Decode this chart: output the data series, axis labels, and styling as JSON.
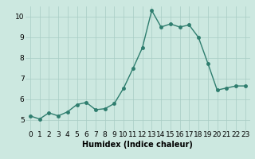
{
  "x": [
    0,
    1,
    2,
    3,
    4,
    5,
    6,
    7,
    8,
    9,
    10,
    11,
    12,
    13,
    14,
    15,
    16,
    17,
    18,
    19,
    20,
    21,
    22,
    23
  ],
  "y": [
    5.2,
    5.05,
    5.35,
    5.2,
    5.4,
    5.75,
    5.85,
    5.5,
    5.55,
    5.8,
    6.55,
    7.5,
    8.5,
    10.3,
    9.5,
    9.65,
    9.5,
    9.6,
    9.0,
    7.75,
    6.45,
    6.55,
    6.65,
    6.65
  ],
  "xlabel": "Humidex (Indice chaleur)",
  "ylim": [
    4.5,
    10.5
  ],
  "xlim": [
    -0.5,
    23.5
  ],
  "line_color": "#2e7d6e",
  "marker_color": "#2e7d6e",
  "bg_color": "#cce8e0",
  "grid_color": "#a8ccc4",
  "yticks": [
    5,
    6,
    7,
    8,
    9,
    10
  ],
  "xtick_labels": [
    "0",
    "1",
    "2",
    "3",
    "4",
    "5",
    "6",
    "7",
    "8",
    "9",
    "10",
    "11",
    "12",
    "13",
    "14",
    "15",
    "16",
    "17",
    "18",
    "19",
    "20",
    "21",
    "22",
    "23"
  ],
  "xlabel_fontsize": 7,
  "tick_fontsize": 6.5,
  "line_width": 1.0,
  "marker_size": 2.5
}
